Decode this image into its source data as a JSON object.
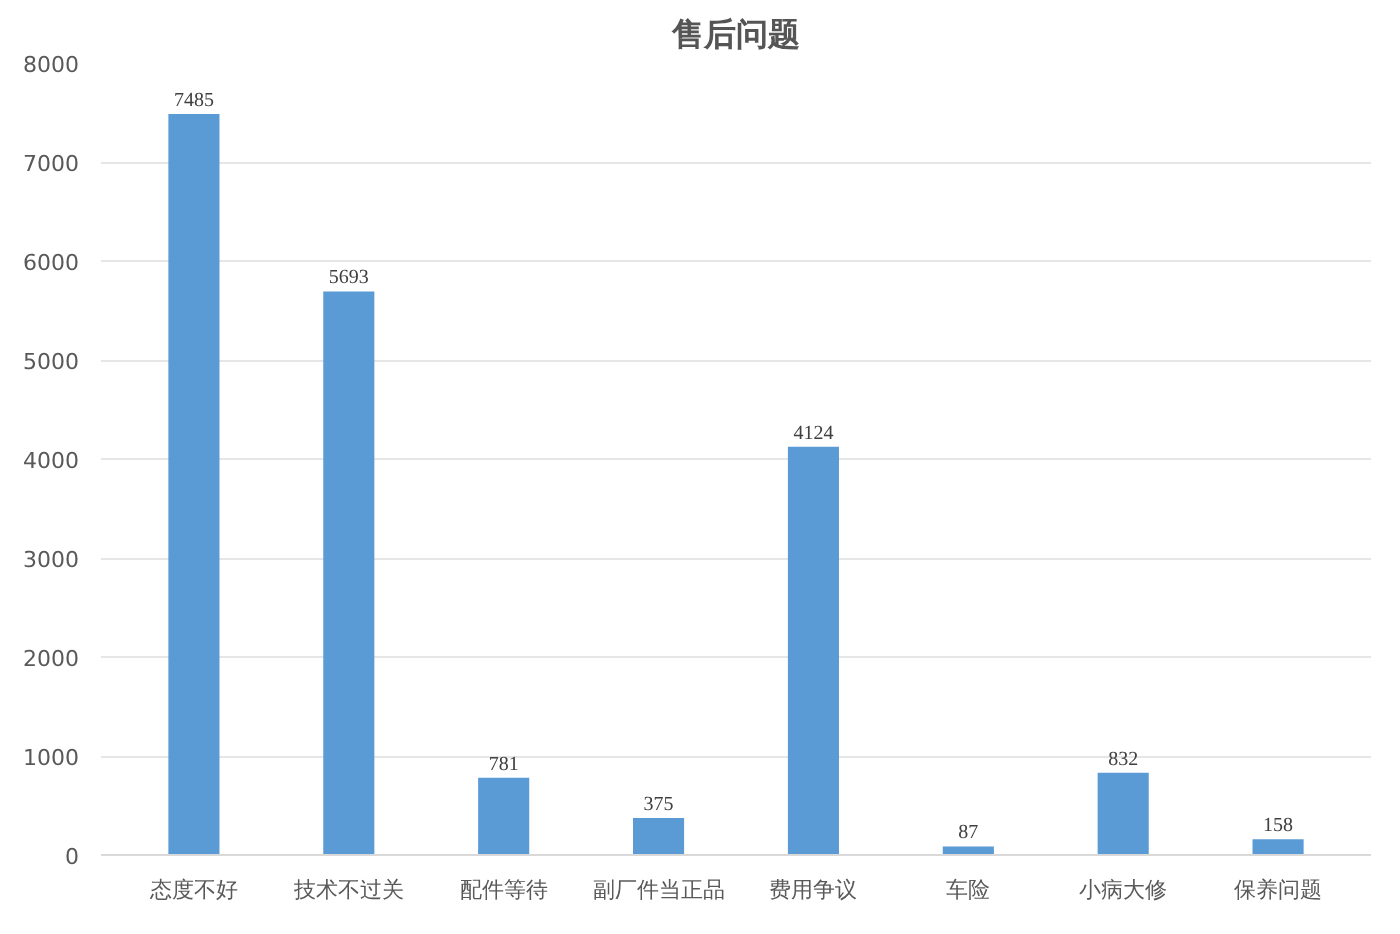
{
  "chart_data": {
    "type": "bar",
    "title": "售后问题",
    "categories": [
      "态度不好",
      "技术不过关",
      "配件等待",
      "副厂件当正品",
      "费用争议",
      "车险",
      "小病大修",
      "保养问题"
    ],
    "values": [
      7485,
      5693,
      781,
      375,
      4124,
      87,
      832,
      158
    ],
    "color": "#5b9bd5",
    "ylim": [
      0,
      8000
    ],
    "yticks": [
      0,
      1000,
      2000,
      3000,
      4000,
      5000,
      6000,
      7000,
      8000
    ],
    "grid": "y",
    "data_labels": true
  }
}
